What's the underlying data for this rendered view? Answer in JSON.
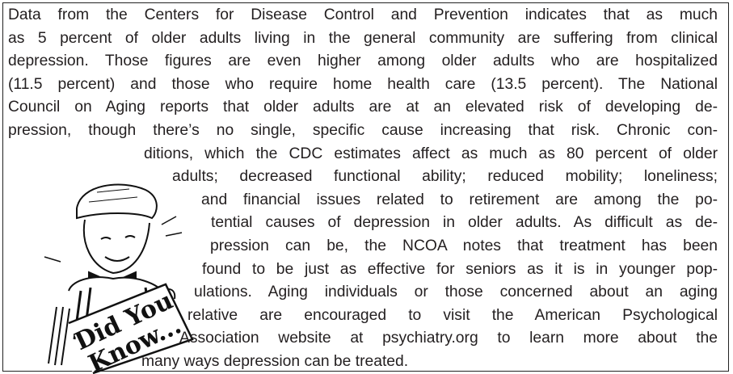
{
  "body": {
    "lines": [
      "Data from the Centers for Disease Control and Prevention indicates that as much",
      "as 5 percent of older adults living in the general community are suffering from clinical",
      "depression. Those figures are even higher among older adults who are hospitalized",
      "(11.5 percent) and those who require home health care (13.5 percent). The National",
      "Council on Aging reports that older adults are at an elevated risk of developing de-",
      "pression, though there’s no single, specific cause increasing that risk. Chronic con-",
      "ditions, which the CDC estimates affect as much as 80 percent of older",
      "adults; decreased functional ability; reduced mobility; loneliness;",
      "and financial issues related to retirement are among the po-",
      "tential causes of depression in older adults. As difficult as de-",
      "pression can be, the NCOA notes that treatment has been",
      "found to be just as effective for seniors as it is in younger pop-",
      "ulations. Aging individuals or those concerned about an aging",
      "relative are encouraged to visit the American Psychological",
      "Association website at psychiatry.org to learn more about the",
      "many ways depression can be treated."
    ]
  },
  "sign": {
    "lines": [
      "Did You",
      "Know..."
    ]
  }
}
